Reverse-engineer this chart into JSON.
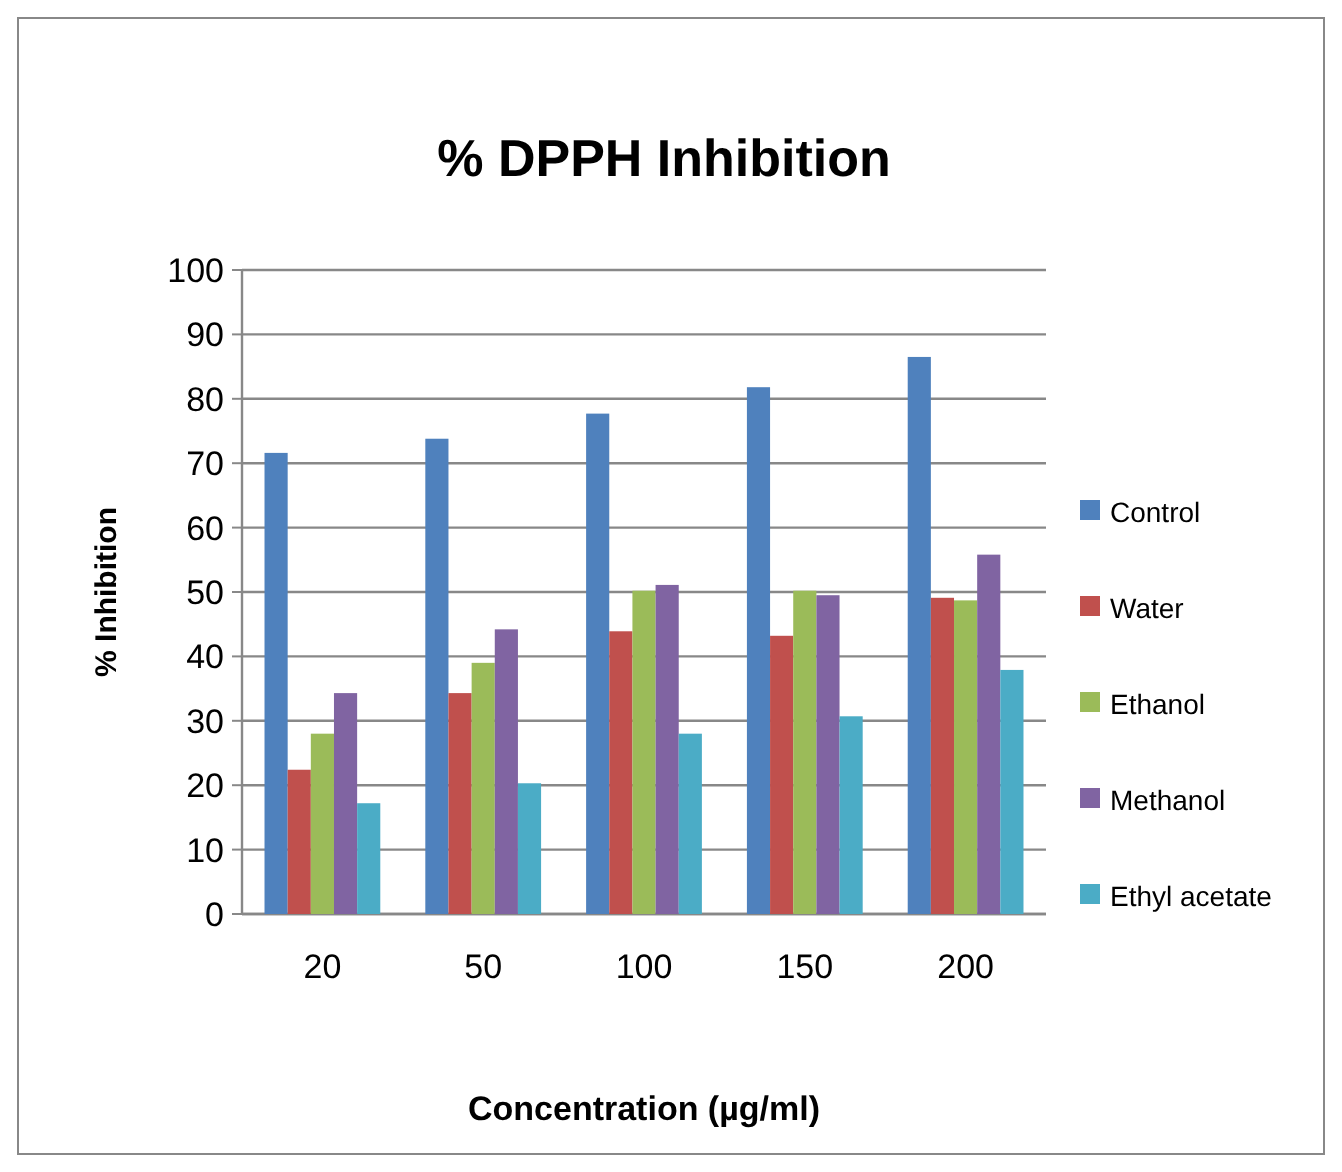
{
  "chart_data": {
    "type": "bar",
    "title": "% DPPH Inhibition",
    "xlabel": "Concentration (µg/ml)",
    "ylabel": "% Inhibition",
    "categories": [
      "20",
      "50",
      "100",
      "150",
      "200"
    ],
    "series": [
      {
        "name": "Control",
        "color": "#4f81bd",
        "values": [
          71.6,
          73.8,
          77.7,
          81.8,
          86.5
        ]
      },
      {
        "name": "Water",
        "color": "#c0504d",
        "values": [
          22.4,
          34.3,
          43.9,
          43.2,
          49.1
        ]
      },
      {
        "name": "Ethanol",
        "color": "#9bbb59",
        "values": [
          28,
          39,
          50.2,
          50.2,
          48.7
        ]
      },
      {
        "name": "Methanol",
        "color": "#8064a2",
        "values": [
          34.3,
          44.2,
          51.1,
          49.5,
          55.8
        ]
      },
      {
        "name": "Ethyl acetate",
        "color": "#4bacc6",
        "values": [
          17.2,
          20.3,
          28,
          30.7,
          37.9
        ]
      }
    ],
    "ylim": [
      0,
      100
    ],
    "yticks": [
      0,
      10,
      20,
      30,
      40,
      50,
      60,
      70,
      80,
      90,
      100
    ],
    "grid": "y",
    "legend": "right"
  }
}
